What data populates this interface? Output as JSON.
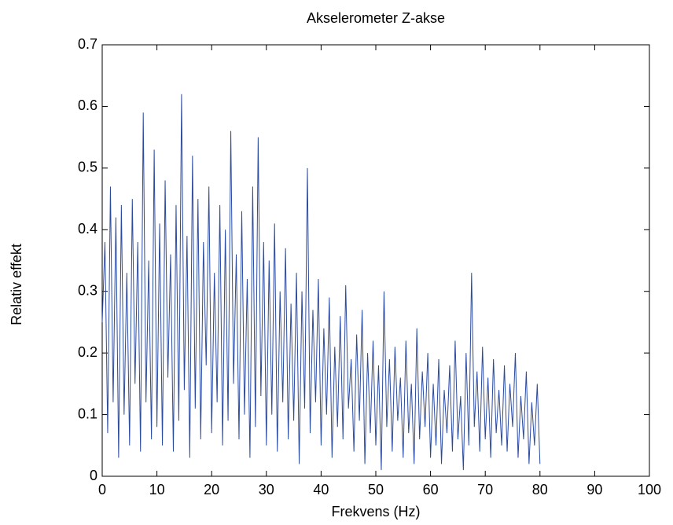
{
  "chart_data": {
    "type": "line",
    "title": "Akselerometer Z-akse",
    "xlabel": "Frekvens (Hz)",
    "ylabel": "Relativ effekt",
    "xlim": [
      0,
      100
    ],
    "ylim": [
      0,
      0.7
    ],
    "xticks": [
      0,
      10,
      20,
      30,
      40,
      50,
      60,
      70,
      80,
      90,
      100
    ],
    "yticks": [
      0,
      0.1,
      0.2,
      0.3,
      0.4,
      0.5,
      0.6,
      0.7
    ],
    "x": [
      0,
      0.5,
      1,
      1.5,
      2,
      2.5,
      3,
      3.5,
      4,
      4.5,
      5,
      5.5,
      6,
      6.5,
      7,
      7.5,
      8,
      8.5,
      9,
      9.5,
      10,
      10.5,
      11,
      11.5,
      12,
      12.5,
      13,
      13.5,
      14,
      14.5,
      15,
      15.5,
      16,
      16.5,
      17,
      17.5,
      18,
      18.5,
      19,
      19.5,
      20,
      20.5,
      21,
      21.5,
      22,
      22.5,
      23,
      23.5,
      24,
      24.5,
      25,
      25.5,
      26,
      26.5,
      27,
      27.5,
      28,
      28.5,
      29,
      29.5,
      30,
      30.5,
      31,
      31.5,
      32,
      32.5,
      33,
      33.5,
      34,
      34.5,
      35,
      35.5,
      36,
      36.5,
      37,
      37.5,
      38,
      38.5,
      39,
      39.5,
      40,
      40.5,
      41,
      41.5,
      42,
      42.5,
      43,
      43.5,
      44,
      44.5,
      45,
      45.5,
      46,
      46.5,
      47,
      47.5,
      48,
      48.5,
      49,
      49.5,
      50,
      50.5,
      51,
      51.5,
      52,
      52.5,
      53,
      53.5,
      54,
      54.5,
      55,
      55.5,
      56,
      56.5,
      57,
      57.5,
      58,
      58.5,
      59,
      59.5,
      60,
      60.5,
      61,
      61.5,
      62,
      62.5,
      63,
      63.5,
      64,
      64.5,
      65,
      65.5,
      66,
      66.5,
      67,
      67.5,
      68,
      68.5,
      69,
      69.5,
      70,
      70.5,
      71,
      71.5,
      72,
      72.5,
      73,
      73.5,
      74,
      74.5,
      75,
      75.5,
      76,
      76.5,
      77,
      77.5,
      78,
      78.5,
      79,
      79.5,
      80
    ],
    "series": [
      {
        "color": "#2b4ba0",
        "values": [
          0.25,
          0.38,
          0.07,
          0.47,
          0.12,
          0.42,
          0.03,
          0.44,
          0.1,
          0.33,
          0.05,
          0.45,
          0.15,
          0.38,
          0.04,
          0.59,
          0.12,
          0.35,
          0.06,
          0.53,
          0.08,
          0.41,
          0.05,
          0.48,
          0.16,
          0.36,
          0.04,
          0.44,
          0.09,
          0.62,
          0.14,
          0.39,
          0.03,
          0.52,
          0.11,
          0.45,
          0.06,
          0.38,
          0.18,
          0.47,
          0.07,
          0.33,
          0.12,
          0.44,
          0.05,
          0.4,
          0.09,
          0.56,
          0.15,
          0.36,
          0.06,
          0.43,
          0.1,
          0.32,
          0.03,
          0.47,
          0.08,
          0.55,
          0.13,
          0.38,
          0.05,
          0.35,
          0.1,
          0.41,
          0.04,
          0.3,
          0.12,
          0.37,
          0.06,
          0.28,
          0.09,
          0.33,
          0.02,
          0.3,
          0.11,
          0.5,
          0.07,
          0.27,
          0.12,
          0.32,
          0.05,
          0.24,
          0.1,
          0.29,
          0.03,
          0.21,
          0.08,
          0.26,
          0.06,
          0.31,
          0.11,
          0.19,
          0.04,
          0.23,
          0.09,
          0.27,
          0.02,
          0.2,
          0.07,
          0.22,
          0.05,
          0.18,
          0.01,
          0.3,
          0.08,
          0.19,
          0.04,
          0.21,
          0.09,
          0.16,
          0.03,
          0.22,
          0.07,
          0.15,
          0.02,
          0.24,
          0.06,
          0.17,
          0.08,
          0.2,
          0.03,
          0.15,
          0.05,
          0.19,
          0.02,
          0.14,
          0.07,
          0.18,
          0.04,
          0.22,
          0.06,
          0.13,
          0.01,
          0.2,
          0.05,
          0.33,
          0.08,
          0.17,
          0.04,
          0.21,
          0.06,
          0.16,
          0.03,
          0.19,
          0.07,
          0.14,
          0.05,
          0.18,
          0.04,
          0.15,
          0.08,
          0.2,
          0.03,
          0.13,
          0.06,
          0.17,
          0.02,
          0.12,
          0.05,
          0.15,
          0.02
        ]
      }
    ]
  }
}
